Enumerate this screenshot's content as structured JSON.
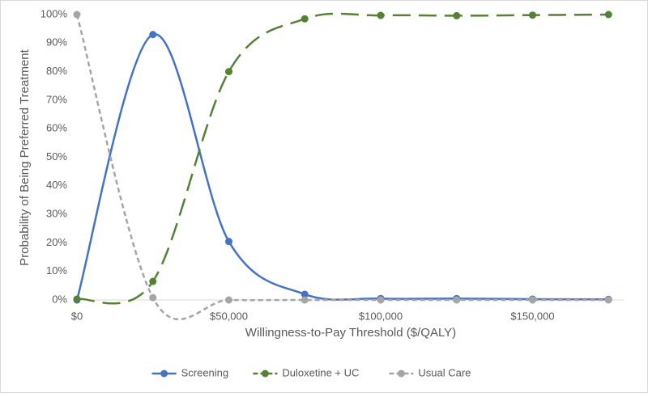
{
  "chart_data": {
    "type": "line",
    "smooth": true,
    "x_label": "Willingness-to-Pay Threshold ($/QALY)",
    "y_label": "Probability of Being Preferred Treatment",
    "x": [
      0,
      25000,
      50000,
      75000,
      100000,
      125000,
      150000,
      175000
    ],
    "series": [
      {
        "name": "Screening",
        "color": "#4472c4",
        "dash": "none",
        "values": [
          0,
          93,
          20.5,
          2,
          0.5,
          0.5,
          0.3,
          0.2
        ]
      },
      {
        "name": "Duloxetine + UC",
        "color": "#548235",
        "dash": "22 10",
        "values": [
          0.3,
          6.5,
          80,
          98.5,
          99.7,
          99.6,
          99.8,
          100
        ]
      },
      {
        "name": "Usual Care",
        "color": "#a5a5a5",
        "dash": "6 4",
        "values": [
          100,
          0.8,
          0,
          0,
          0,
          0,
          0,
          0
        ]
      }
    ],
    "xlim": [
      0,
      180000
    ],
    "xticks": [
      {
        "value": 0,
        "label": "$0"
      },
      {
        "value": 50000,
        "label": "$50,000"
      },
      {
        "value": 100000,
        "label": "$100,000"
      },
      {
        "value": 150000,
        "label": "$150,000"
      }
    ],
    "ylim": [
      0,
      100
    ],
    "yticks": [
      {
        "value": 0,
        "label": "0%"
      },
      {
        "value": 10,
        "label": "10%"
      },
      {
        "value": 20,
        "label": "20%"
      },
      {
        "value": 30,
        "label": "30%"
      },
      {
        "value": 40,
        "label": "40%"
      },
      {
        "value": 50,
        "label": "50%"
      },
      {
        "value": 60,
        "label": "60%"
      },
      {
        "value": 70,
        "label": "70%"
      },
      {
        "value": 80,
        "label": "80%"
      },
      {
        "value": 90,
        "label": "90%"
      },
      {
        "value": 100,
        "label": "100%"
      }
    ],
    "grid": false,
    "legend": "bottom"
  }
}
